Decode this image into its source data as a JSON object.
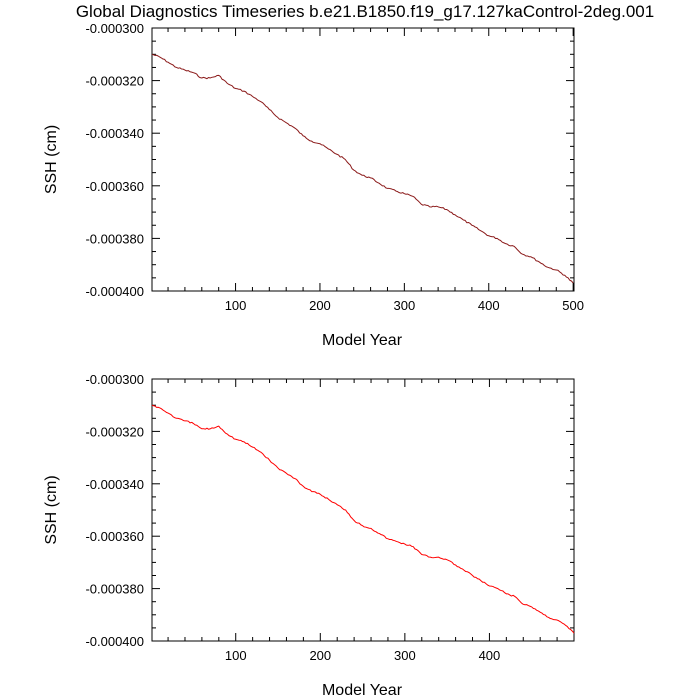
{
  "title": "Global Diagnostics Timeseries b.e21.B1850.f19_g17.127kaControl-2deg.001",
  "chart_data": [
    {
      "type": "line",
      "xlabel": "Model Year",
      "ylabel": "SSH (cm)",
      "xlim": [
        1,
        501
      ],
      "ylim": [
        -0.0004,
        -0.0003
      ],
      "x_ticks": [
        100,
        200,
        300,
        400,
        500
      ],
      "x_tick_labels": [
        "100",
        "200",
        "300",
        "400",
        "500"
      ],
      "y_ticks": [
        -0.0003,
        -0.00032,
        -0.00034,
        -0.00036,
        -0.00038,
        -0.0004
      ],
      "y_tick_labels": [
        "-0.000300",
        "-0.000320",
        "-0.000340",
        "-0.000360",
        "-0.000380",
        "-0.000400"
      ],
      "series": [
        {
          "name": "SSH",
          "color": "#8b1a1a",
          "x": [
            1,
            10,
            20,
            30,
            40,
            50,
            60,
            70,
            80,
            90,
            100,
            110,
            120,
            130,
            140,
            150,
            160,
            170,
            180,
            190,
            200,
            210,
            220,
            230,
            240,
            250,
            260,
            270,
            280,
            290,
            300,
            310,
            320,
            330,
            340,
            350,
            360,
            370,
            380,
            390,
            400,
            410,
            420,
            430,
            440,
            450,
            460,
            470,
            480,
            490,
            500
          ],
          "values": [
            -0.00031,
            -0.000311,
            -0.000313,
            -0.000315,
            -0.000316,
            -0.000317,
            -0.000319,
            -0.000319,
            -0.000318,
            -0.000321,
            -0.000323,
            -0.000324,
            -0.000326,
            -0.000328,
            -0.000331,
            -0.000334,
            -0.000336,
            -0.000338,
            -0.000341,
            -0.000343,
            -0.000344,
            -0.000346,
            -0.000348,
            -0.00035,
            -0.000354,
            -0.000356,
            -0.000357,
            -0.000359,
            -0.000361,
            -0.000362,
            -0.000363,
            -0.000364,
            -0.000367,
            -0.000368,
            -0.000368,
            -0.000369,
            -0.000371,
            -0.000373,
            -0.000375,
            -0.000377,
            -0.000379,
            -0.00038,
            -0.000382,
            -0.000383,
            -0.000386,
            -0.000387,
            -0.000389,
            -0.000391,
            -0.000392,
            -0.000394,
            -0.000397
          ]
        }
      ]
    },
    {
      "type": "line",
      "xlabel": "Model Year",
      "ylabel": "SSH (cm)",
      "xlim": [
        1,
        500
      ],
      "ylim": [
        -0.0004,
        -0.0003
      ],
      "x_ticks": [
        100,
        200,
        300,
        400
      ],
      "x_tick_labels": [
        "100",
        "200",
        "300",
        "400"
      ],
      "y_ticks": [
        -0.0003,
        -0.00032,
        -0.00034,
        -0.00036,
        -0.00038,
        -0.0004
      ],
      "y_tick_labels": [
        "-0.000300",
        "-0.000320",
        "-0.000340",
        "-0.000360",
        "-0.000380",
        "-0.000400"
      ],
      "series": [
        {
          "name": "SSH",
          "color": "#ff0000",
          "x": [
            1,
            10,
            20,
            30,
            40,
            50,
            60,
            70,
            80,
            90,
            100,
            110,
            120,
            130,
            140,
            150,
            160,
            170,
            180,
            190,
            200,
            210,
            220,
            230,
            240,
            250,
            260,
            270,
            280,
            290,
            300,
            310,
            320,
            330,
            340,
            350,
            360,
            370,
            380,
            390,
            400,
            410,
            420,
            430,
            440,
            450,
            460,
            470,
            480,
            490,
            500
          ],
          "values": [
            -0.00031,
            -0.000311,
            -0.000313,
            -0.000315,
            -0.000316,
            -0.000317,
            -0.000319,
            -0.000319,
            -0.000318,
            -0.000321,
            -0.000323,
            -0.000324,
            -0.000326,
            -0.000328,
            -0.000331,
            -0.000334,
            -0.000336,
            -0.000338,
            -0.000341,
            -0.000343,
            -0.000344,
            -0.000346,
            -0.000348,
            -0.00035,
            -0.000354,
            -0.000356,
            -0.000357,
            -0.000359,
            -0.000361,
            -0.000362,
            -0.000363,
            -0.000364,
            -0.000367,
            -0.000368,
            -0.000368,
            -0.000369,
            -0.000371,
            -0.000373,
            -0.000375,
            -0.000377,
            -0.000379,
            -0.00038,
            -0.000382,
            -0.000383,
            -0.000386,
            -0.000387,
            -0.000389,
            -0.000391,
            -0.000392,
            -0.000394,
            -0.000397
          ]
        }
      ]
    }
  ]
}
